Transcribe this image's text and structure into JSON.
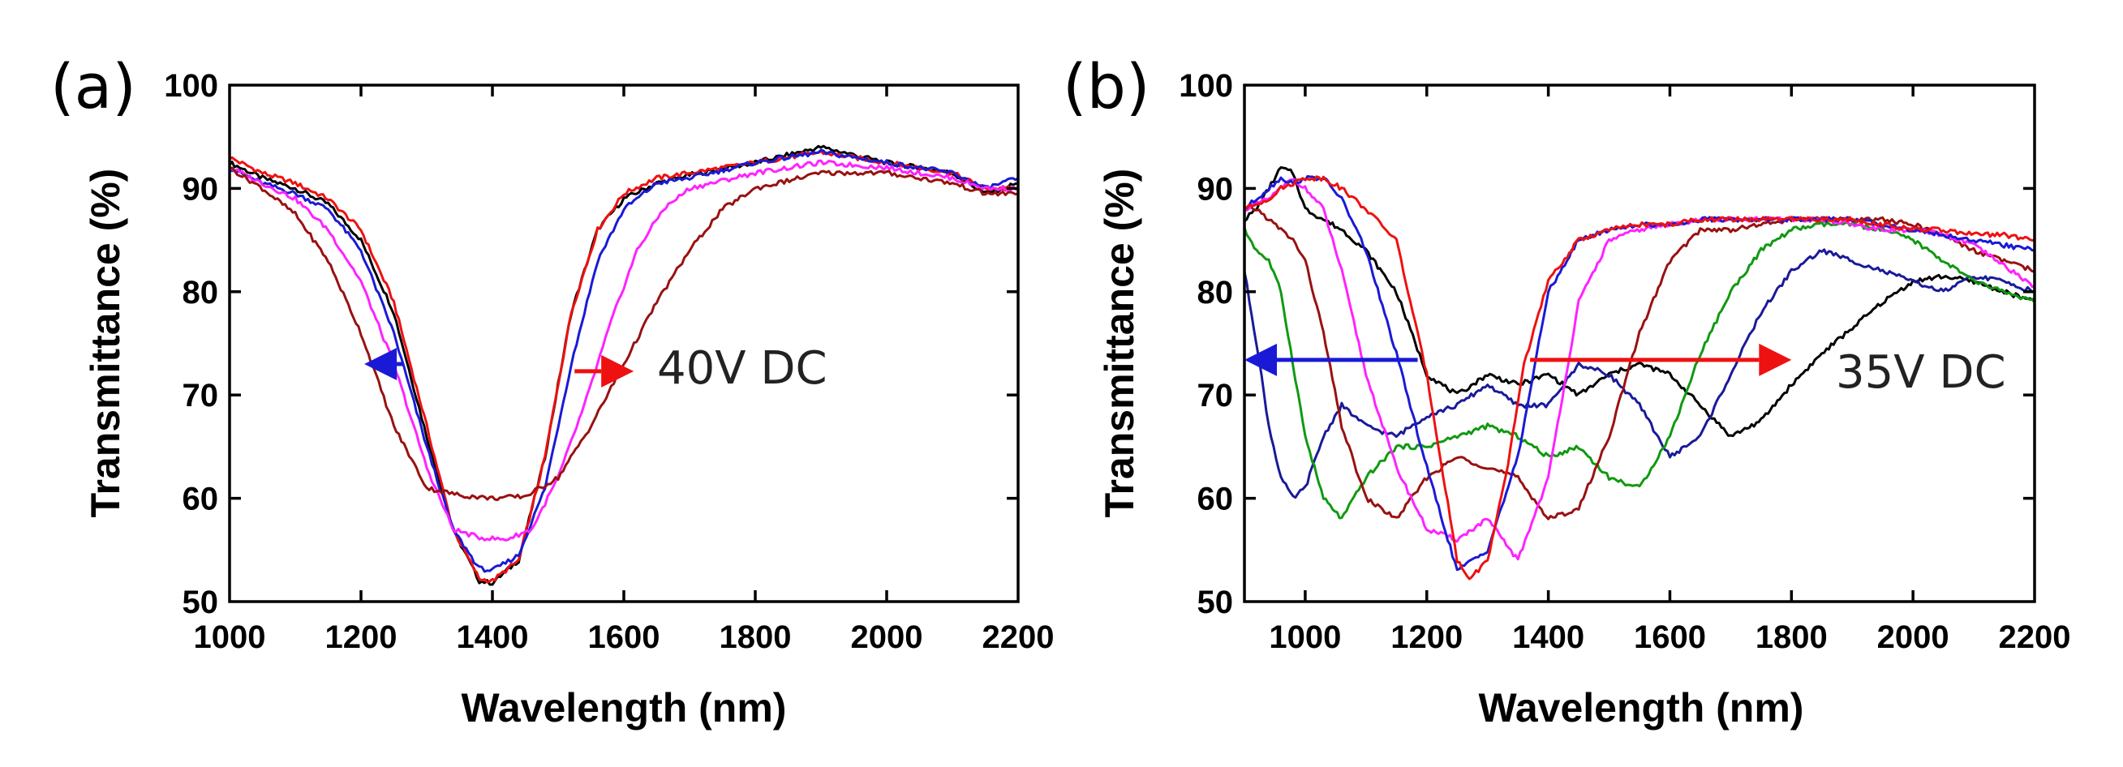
{
  "chart_data": [
    {
      "type": "line",
      "panel_label": "(a)",
      "xlabel": "Wavelength (nm)",
      "ylabel": "Transmittance (%)",
      "xlim": [
        1000,
        2200
      ],
      "ylim": [
        50,
        100
      ],
      "xticks": [
        1000,
        1200,
        1400,
        1600,
        1800,
        2000,
        2200
      ],
      "yticks": [
        50,
        60,
        70,
        80,
        90,
        100
      ],
      "annotation": "40V DC",
      "arrows": [
        {
          "color": "#1a1ad6",
          "from": [
            1265,
            73
          ],
          "to": [
            1205,
            73
          ]
        },
        {
          "color": "#ee1111",
          "from": [
            1525,
            72.3
          ],
          "to": [
            1615,
            72.3
          ]
        }
      ],
      "series": [
        {
          "name": "black",
          "color": "#000000",
          "x": [
            1000,
            1050,
            1100,
            1150,
            1200,
            1250,
            1300,
            1340,
            1380,
            1400,
            1440,
            1480,
            1520,
            1560,
            1600,
            1650,
            1700,
            1800,
            1900,
            2000,
            2100,
            2150,
            2200
          ],
          "y": [
            92.5,
            91,
            90,
            88.5,
            85,
            78,
            66,
            57,
            52,
            51.8,
            54,
            64,
            78,
            86,
            89,
            90.5,
            91.3,
            92.5,
            94,
            92.5,
            91.5,
            89.5,
            90.5
          ]
        },
        {
          "name": "red",
          "color": "#ee1111",
          "x": [
            1000,
            1050,
            1100,
            1150,
            1200,
            1250,
            1300,
            1340,
            1380,
            1400,
            1440,
            1480,
            1520,
            1560,
            1600,
            1650,
            1700,
            1800,
            1900,
            2000,
            2100,
            2150,
            2200
          ],
          "y": [
            93,
            91.5,
            90.5,
            89,
            86,
            79,
            67,
            57,
            52.2,
            52,
            54,
            64,
            78,
            86,
            89.5,
            91,
            91.5,
            92.5,
            93.5,
            92.5,
            91.5,
            90,
            90
          ]
        },
        {
          "name": "blue",
          "color": "#1a1ad6",
          "x": [
            1000,
            1050,
            1100,
            1150,
            1200,
            1250,
            1300,
            1340,
            1380,
            1400,
            1440,
            1480,
            1520,
            1560,
            1600,
            1650,
            1700,
            1800,
            1900,
            2000,
            2100,
            2150,
            2200
          ],
          "y": [
            92,
            90.5,
            89.5,
            88,
            84,
            76,
            65,
            57,
            53.2,
            53,
            54.5,
            61,
            73,
            83,
            88,
            90.5,
            91,
            92.5,
            93.5,
            92.5,
            91.5,
            90,
            91
          ]
        },
        {
          "name": "magenta",
          "color": "#ff22ff",
          "x": [
            1000,
            1050,
            1100,
            1150,
            1200,
            1250,
            1300,
            1340,
            1380,
            1420,
            1460,
            1500,
            1540,
            1580,
            1620,
            1660,
            1700,
            1800,
            1900,
            2000,
            2100,
            2150,
            2200
          ],
          "y": [
            92,
            90.5,
            89,
            86,
            81,
            73,
            63,
            57,
            56.2,
            56,
            57,
            62,
            69,
            77,
            84,
            88,
            90,
            91.5,
            92.5,
            92,
            91,
            90,
            90
          ]
        },
        {
          "name": "darkred",
          "color": "#991111",
          "x": [
            1000,
            1050,
            1100,
            1150,
            1200,
            1250,
            1300,
            1350,
            1400,
            1450,
            1500,
            1550,
            1600,
            1650,
            1700,
            1750,
            1800,
            1900,
            2000,
            2100,
            2150,
            2200
          ],
          "y": [
            92,
            90,
            87.5,
            83,
            76,
            67,
            61,
            60.3,
            60,
            60.2,
            62,
            67,
            73,
            79,
            84,
            88,
            90,
            91.5,
            91.5,
            90.5,
            89.5,
            89.5
          ]
        }
      ]
    },
    {
      "type": "line",
      "panel_label": "(b)",
      "xlabel": "Wavelength (nm)",
      "ylabel": "Transmittance (%)",
      "xlim": [
        900,
        2200
      ],
      "ylim": [
        50,
        100
      ],
      "xticks": [
        1000,
        1200,
        1400,
        1600,
        1800,
        2000,
        2200
      ],
      "yticks": [
        50,
        60,
        70,
        80,
        90,
        100
      ],
      "annotation": "35V DC",
      "arrows": [
        {
          "color": "#1a1ad6",
          "from": [
            1185,
            73.4
          ],
          "to": [
            900,
            73.4
          ]
        },
        {
          "color": "#ee1111",
          "from": [
            1370,
            73.4
          ],
          "to": [
            1800,
            73.4
          ]
        }
      ],
      "series": [
        {
          "name": "black",
          "color": "#000000",
          "x": [
            900,
            920,
            940,
            960,
            980,
            1000,
            1030,
            1060,
            1100,
            1150,
            1200,
            1250,
            1300,
            1350,
            1400,
            1450,
            1500,
            1550,
            1600,
            1650,
            1700,
            1750,
            1800,
            1850,
            1900,
            1950,
            2000,
            2050,
            2100,
            2150,
            2200
          ],
          "y": [
            87,
            88,
            90,
            92,
            91.5,
            88,
            87,
            86,
            84,
            80,
            72,
            70,
            72,
            71,
            72,
            70,
            72,
            73,
            72,
            69,
            66,
            67.5,
            71,
            74,
            76.5,
            79,
            81,
            81.5,
            81,
            80,
            79
          ]
        },
        {
          "name": "darkblue",
          "color": "#1a1a99",
          "x": [
            900,
            920,
            940,
            960,
            980,
            1000,
            1030,
            1060,
            1100,
            1150,
            1200,
            1250,
            1300,
            1350,
            1400,
            1450,
            1500,
            1550,
            1600,
            1650,
            1700,
            1750,
            1800,
            1850,
            1900,
            1950,
            2000,
            2050,
            2100,
            2150,
            2200
          ],
          "y": [
            82,
            75,
            67,
            62,
            60,
            61,
            66,
            69,
            67,
            66,
            68,
            69,
            71,
            69,
            69,
            73,
            72,
            69,
            64,
            66,
            72,
            78,
            82,
            84,
            83,
            82,
            81,
            80,
            81.5,
            81,
            80
          ]
        },
        {
          "name": "green",
          "color": "#119911",
          "x": [
            900,
            920,
            940,
            960,
            980,
            1000,
            1030,
            1060,
            1100,
            1150,
            1200,
            1250,
            1300,
            1350,
            1400,
            1450,
            1500,
            1550,
            1600,
            1650,
            1700,
            1750,
            1800,
            1850,
            1900,
            1950,
            2000,
            2050,
            2100,
            2150,
            2200
          ],
          "y": [
            86,
            84,
            83,
            80,
            73,
            66,
            60,
            58,
            62,
            65,
            65,
            66,
            67,
            66,
            64,
            65,
            62,
            61,
            66,
            74,
            80,
            84,
            86,
            86.5,
            86.5,
            86,
            85,
            83,
            81,
            80,
            79
          ]
        },
        {
          "name": "darkred",
          "color": "#991111",
          "x": [
            900,
            920,
            940,
            960,
            980,
            1000,
            1030,
            1060,
            1100,
            1150,
            1200,
            1250,
            1300,
            1350,
            1400,
            1450,
            1500,
            1550,
            1600,
            1650,
            1700,
            1750,
            1800,
            1850,
            1900,
            1950,
            2000,
            2050,
            2100,
            2150,
            2200
          ],
          "y": [
            88,
            88,
            87,
            86,
            85,
            83,
            76,
            67,
            60,
            58,
            62,
            64,
            63,
            62,
            58,
            59,
            66,
            76,
            83,
            86,
            86,
            86.5,
            87,
            87,
            87,
            87,
            86.5,
            85.5,
            84,
            83,
            82
          ]
        },
        {
          "name": "magenta",
          "color": "#ff22ff",
          "x": [
            900,
            920,
            940,
            960,
            980,
            1000,
            1030,
            1060,
            1100,
            1150,
            1200,
            1250,
            1300,
            1350,
            1400,
            1450,
            1500,
            1550,
            1600,
            1650,
            1700,
            1750,
            1800,
            1850,
            1900,
            1950,
            2000,
            2050,
            2100,
            2150,
            2200
          ],
          "y": [
            88,
            88.5,
            89,
            90,
            91,
            90,
            88,
            82,
            72,
            63,
            57,
            56,
            58,
            54,
            62,
            79,
            85,
            86,
            86.5,
            87,
            87,
            87,
            87,
            87,
            86.5,
            86,
            86,
            85.5,
            84.5,
            82.5,
            80.5
          ]
        },
        {
          "name": "blue",
          "color": "#1a1ad6",
          "x": [
            900,
            920,
            940,
            960,
            980,
            1000,
            1030,
            1060,
            1100,
            1150,
            1200,
            1250,
            1300,
            1350,
            1400,
            1450,
            1500,
            1550,
            1600,
            1650,
            1700,
            1750,
            1800,
            1850,
            1900,
            1950,
            2000,
            2050,
            2100,
            2150,
            2200
          ],
          "y": [
            88,
            89,
            90,
            91,
            90.5,
            91,
            91,
            89,
            84,
            74,
            63,
            53,
            55,
            64,
            80,
            85,
            86,
            86.5,
            86.5,
            87,
            87,
            87,
            87,
            87,
            87,
            86.5,
            86,
            85.5,
            85,
            84.5,
            84
          ]
        },
        {
          "name": "red",
          "color": "#ee1111",
          "x": [
            900,
            920,
            940,
            960,
            980,
            1000,
            1030,
            1060,
            1100,
            1150,
            1200,
            1250,
            1270,
            1300,
            1330,
            1360,
            1400,
            1450,
            1500,
            1550,
            1600,
            1650,
            1700,
            1750,
            1800,
            1850,
            1900,
            1950,
            2000,
            2050,
            2100,
            2150,
            2200
          ],
          "y": [
            88,
            88.5,
            89,
            90,
            90.5,
            91,
            91,
            90,
            88,
            85,
            72,
            54,
            52.2,
            54,
            62,
            73,
            81,
            85,
            86,
            86.5,
            86.5,
            87,
            87,
            87,
            87,
            87,
            87,
            86.5,
            86,
            86,
            85.5,
            85.5,
            85
          ]
        }
      ]
    }
  ]
}
